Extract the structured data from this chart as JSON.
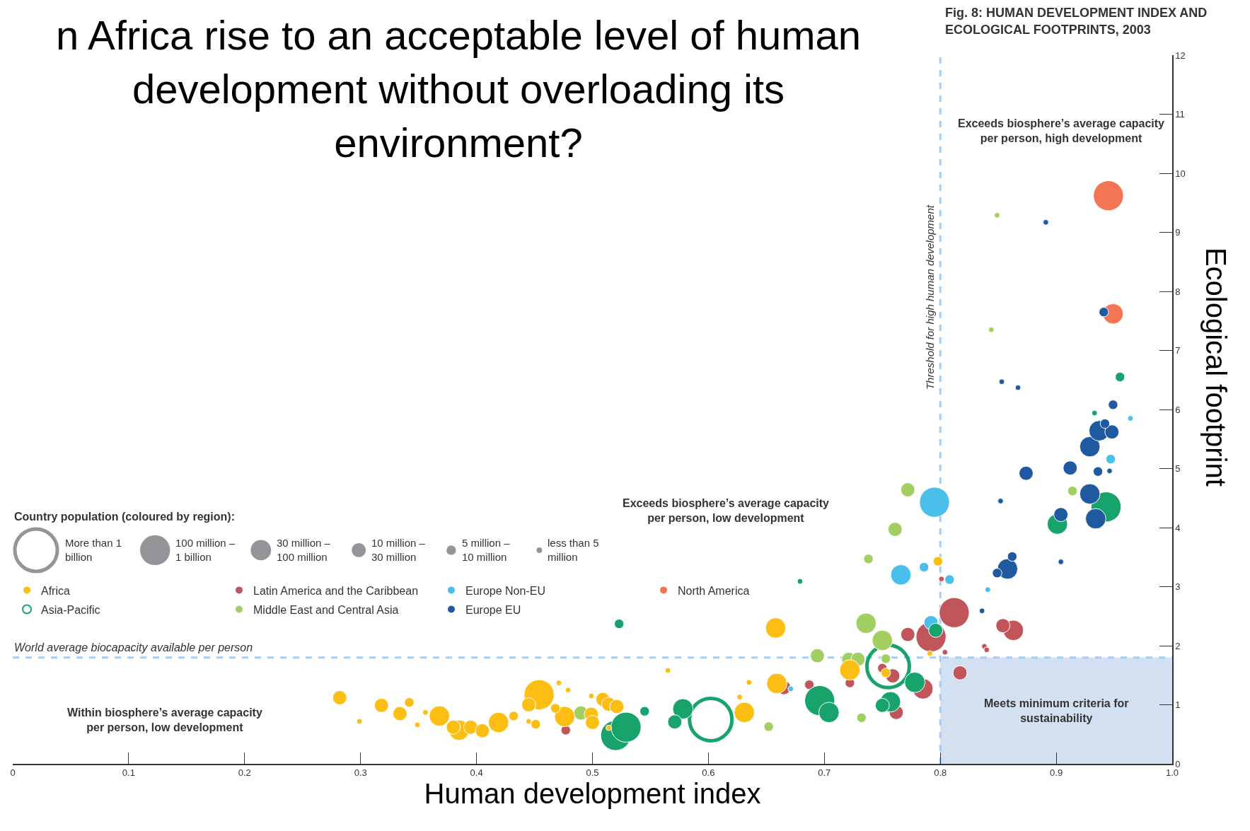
{
  "chart_data": {
    "type": "bubble",
    "title": "n Africa rise to an acceptable level of human development without overloading its environment?",
    "subtitle": "Fig. 8: HUMAN DEVELOPMENT INDEX AND ECOLOGICAL FOOTPRINTS, 2003",
    "xlabel": "Human development index",
    "ylabel": "Ecological footprint",
    "legend_title": "Country population (coloured by region):",
    "size_legend": [
      {
        "value": 1,
        "label": "More than 1 billion"
      },
      {
        "value": 0.5,
        "label": "100 million – 1 billion"
      },
      {
        "value": 0.23,
        "label": "30 million – 100 million"
      },
      {
        "value": 0.11,
        "label": "10 million – 30 million"
      },
      {
        "value": 0.05,
        "label": "5 million – 10 million"
      },
      {
        "value": 0.017,
        "label": "less than 5 million"
      }
    ],
    "xlim": [
      0,
      1
    ],
    "ylim": [
      0,
      12
    ],
    "xticks": [
      0,
      0.1,
      0.2,
      0.3,
      0.4,
      0.5,
      0.6,
      0.7,
      0.8,
      0.9,
      {
        "value": 1,
        "label": "1.0"
      }
    ],
    "yticks": [
      0,
      1,
      2,
      3,
      4,
      5,
      6,
      7,
      8,
      9,
      10,
      11,
      12
    ],
    "grid": false,
    "legend": "left",
    "series": [
      {
        "name": "Latin America and the Caribbean",
        "color": "#c0565a",
        "x": [
          0.792,
          0.812,
          0.785,
          0.863,
          0.665,
          0.759,
          0.762,
          0.772,
          0.817,
          0.854,
          0.477,
          0.687,
          0.722,
          0.75,
          0.804,
          0.801,
          0.838,
          0.84
        ],
        "values": [
          2.15,
          2.56,
          1.27,
          2.26,
          1.29,
          1.49,
          0.87,
          2.19,
          1.54,
          2.34,
          0.57,
          1.34,
          1.37,
          1.62,
          1.89,
          3.13,
          1.99,
          1.93
        ],
        "sizes": [
          0.5,
          0.5,
          0.23,
          0.23,
          0.11,
          0.11,
          0.11,
          0.11,
          0.11,
          0.11,
          0.05,
          0.05,
          0.05,
          0.05,
          0.017,
          0.017,
          0.017,
          0.017
        ]
      },
      {
        "name": "Europe Non-EU",
        "color": "#4abfeb",
        "x": [
          0.795,
          0.766,
          0.792,
          0.786,
          0.808,
          0.947,
          0.671,
          0.841,
          0.964
        ],
        "values": [
          4.43,
          3.2,
          2.39,
          3.33,
          3.12,
          5.16,
          1.27,
          2.95,
          5.85
        ],
        "sizes": [
          0.5,
          0.23,
          0.11,
          0.05,
          0.05,
          0.05,
          0.017,
          0.017,
          0.017
        ]
      },
      {
        "name": "North America",
        "color": "#f37654",
        "x": [
          0.945,
          0.949
        ],
        "values": [
          9.62,
          7.62
        ],
        "sizes": [
          0.5,
          0.23
        ]
      },
      {
        "name": "Asia-Pacific",
        "color": "#17a36b",
        "x": [
          0.602,
          0.755,
          0.52,
          0.529,
          0.696,
          0.943,
          0.578,
          0.704,
          0.757,
          0.778,
          0.901,
          0.571,
          0.75,
          0.796,
          0.523,
          0.545,
          0.955,
          0.679,
          0.933
        ],
        "values": [
          0.75,
          1.65,
          0.48,
          0.62,
          1.07,
          4.35,
          0.93,
          0.87,
          1.05,
          1.38,
          4.06,
          0.71,
          0.99,
          2.26,
          2.37,
          0.89,
          6.55,
          3.09,
          5.94
        ],
        "sizes": [
          1,
          1,
          0.5,
          0.5,
          0.5,
          0.5,
          0.23,
          0.23,
          0.23,
          0.23,
          0.23,
          0.11,
          0.11,
          0.11,
          0.05,
          0.05,
          0.05,
          0.017,
          0.017
        ]
      },
      {
        "name": "Middle East and Central Asia",
        "color": "#a3cf62",
        "x": [
          0.736,
          0.75,
          0.49,
          0.694,
          0.721,
          0.729,
          0.761,
          0.772,
          0.652,
          0.732,
          0.738,
          0.753,
          0.914,
          0.844,
          0.849
        ],
        "values": [
          2.38,
          2.09,
          0.86,
          1.83,
          1.77,
          1.77,
          3.97,
          4.64,
          0.63,
          0.78,
          3.47,
          1.78,
          4.62,
          7.35,
          9.29
        ],
        "sizes": [
          0.23,
          0.23,
          0.11,
          0.11,
          0.11,
          0.11,
          0.11,
          0.11,
          0.05,
          0.05,
          0.05,
          0.05,
          0.05,
          0.017,
          0.017
        ]
      },
      {
        "name": "Europe EU",
        "color": "#1f5aa0",
        "x": [
          0.858,
          0.929,
          0.934,
          0.929,
          0.937,
          0.874,
          0.904,
          0.912,
          0.948,
          0.849,
          0.862,
          0.936,
          0.942,
          0.949,
          0.941,
          0.836,
          0.852,
          0.904,
          0.946,
          0.853,
          0.867,
          0.891
        ],
        "values": [
          3.3,
          4.57,
          4.15,
          5.37,
          5.64,
          4.92,
          4.22,
          5.01,
          5.62,
          3.23,
          3.51,
          4.95,
          5.76,
          6.08,
          7.65,
          2.59,
          4.45,
          3.42,
          4.96,
          6.47,
          6.37,
          9.17
        ],
        "sizes": [
          0.23,
          0.23,
          0.23,
          0.23,
          0.23,
          0.11,
          0.11,
          0.11,
          0.11,
          0.05,
          0.05,
          0.05,
          0.05,
          0.05,
          0.05,
          0.017,
          0.017,
          0.017,
          0.017,
          0.017,
          0.017,
          0.017
        ]
      },
      {
        "name": "Africa",
        "color": "#fdbe14",
        "x": [
          0.454,
          0.368,
          0.385,
          0.419,
          0.476,
          0.631,
          0.659,
          0.658,
          0.722,
          0.282,
          0.318,
          0.334,
          0.38,
          0.395,
          0.405,
          0.445,
          0.499,
          0.5,
          0.509,
          0.514,
          0.521,
          0.342,
          0.432,
          0.451,
          0.468,
          0.753,
          0.798,
          0.299,
          0.356,
          0.349,
          0.445,
          0.471,
          0.479,
          0.499,
          0.514,
          0.565,
          0.627,
          0.635,
          0.791
        ],
        "values": [
          1.17,
          0.81,
          0.57,
          0.7,
          0.8,
          0.87,
          1.36,
          2.3,
          1.59,
          1.12,
          0.99,
          0.85,
          0.62,
          0.62,
          0.56,
          1.0,
          0.84,
          0.7,
          1.09,
          1.01,
          0.97,
          1.04,
          0.81,
          0.67,
          0.94,
          1.54,
          3.43,
          0.72,
          0.87,
          0.66,
          0.72,
          1.37,
          1.25,
          1.15,
          0.61,
          1.58,
          1.13,
          1.38,
          1.87
        ],
        "sizes": [
          0.5,
          0.23,
          0.23,
          0.23,
          0.23,
          0.23,
          0.23,
          0.23,
          0.23,
          0.11,
          0.11,
          0.11,
          0.11,
          0.11,
          0.11,
          0.11,
          0.11,
          0.11,
          0.11,
          0.11,
          0.11,
          0.05,
          0.05,
          0.05,
          0.05,
          0.05,
          0.05,
          0.017,
          0.017,
          0.017,
          0.017,
          0.017,
          0.017,
          0.017,
          0.017,
          0.017,
          0.017,
          0.017,
          0.017
        ]
      }
    ],
    "ref_lines": [
      {
        "axis": "y",
        "value": 1.8,
        "label": "World average biocapacity available per person",
        "color": "#a9cbec",
        "line_style": "dashed"
      },
      {
        "axis": "x",
        "value": 0.8,
        "label": "Threshold for high human development",
        "color": "#a9cbec",
        "line_style": "dashed"
      }
    ],
    "bands": [
      {
        "axis": "x",
        "from": 0.8,
        "to": 1,
        "label": "Meets minimum criteria for sustainability",
        "color": "#d3e0f1"
      }
    ],
    "annotations": [
      "Exceeds biosphere’s average capacity per person, high development",
      "Exceeds biosphere’s average capacity per person, low development",
      "Within biosphere’s average capacity per person, low development"
    ]
  }
}
